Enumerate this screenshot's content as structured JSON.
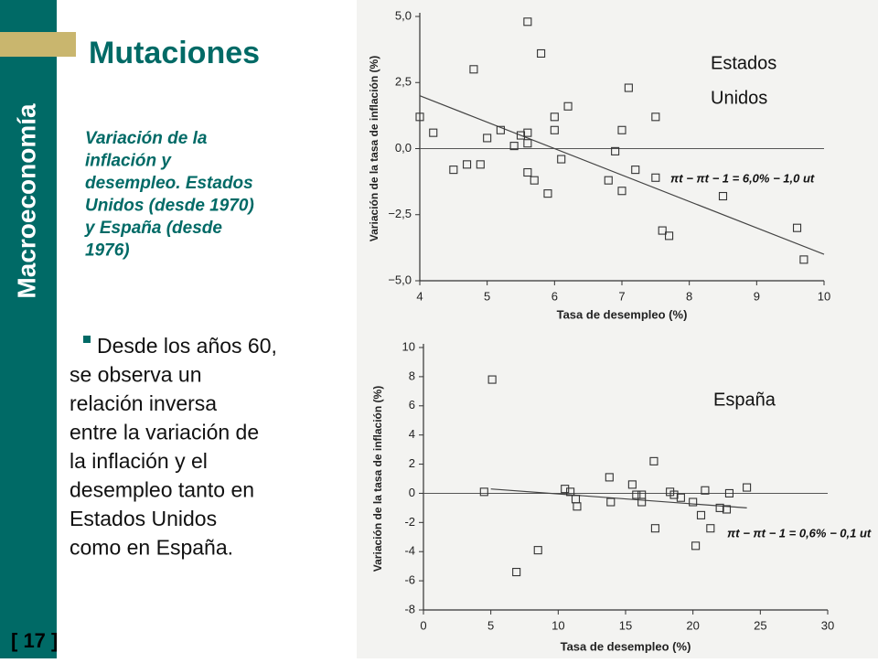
{
  "slide": {
    "sidebar": "Macroeconomía",
    "title": "Mutaciones",
    "subtitle_lines": [
      "Variación de la",
      "inflación y",
      "desempleo. Estados",
      "Unidos (desde 1970)",
      "y España (desde",
      "1976)"
    ],
    "bullet_lines": [
      "Desde los años 60,",
      "se observa un",
      "relación inversa",
      "entre la variación de",
      "la inflación y el",
      "desempleo tanto en",
      "Estados Unidos",
      "como en España."
    ],
    "page": "[ 17 ]"
  },
  "chart_data": [
    {
      "type": "scatter",
      "title_lines": [
        "Estados",
        "Unidos"
      ],
      "x_label": "Tasa de desempleo (%)",
      "y_label": "Variación de la tasa de inflación (%)",
      "annotation": "πt − πt − 1 = 6,0% − 1,0 ut",
      "color": "#333333",
      "x": [
        4.0,
        4.2,
        4.5,
        4.7,
        4.8,
        4.9,
        5.0,
        5.2,
        5.4,
        5.5,
        5.6,
        5.6,
        5.6,
        5.6,
        5.7,
        5.8,
        5.9,
        6.0,
        6.0,
        6.1,
        6.2,
        6.8,
        6.9,
        7.0,
        7.0,
        7.1,
        7.2,
        7.5,
        7.5,
        7.6,
        7.7,
        8.5,
        9.6,
        9.7
      ],
      "values": [
        1.2,
        0.6,
        -0.8,
        -0.6,
        3.0,
        -0.6,
        0.4,
        0.7,
        0.1,
        0.5,
        0.2,
        0.6,
        4.8,
        -0.9,
        -1.2,
        3.6,
        -1.7,
        0.7,
        1.2,
        -0.4,
        1.6,
        -1.2,
        -0.1,
        -1.6,
        0.7,
        2.3,
        -0.8,
        -1.1,
        1.2,
        -3.1,
        -3.3,
        -1.8,
        -3.0,
        -4.2
      ],
      "fit": {
        "x": [
          4,
          10
        ],
        "values": [
          2.0,
          -4.0
        ]
      },
      "reference_line": 0,
      "xlim": [
        4,
        10
      ],
      "xticks": [
        4,
        5,
        6,
        7,
        8,
        9,
        10
      ],
      "ylim": [
        -5,
        5
      ],
      "yticks": [
        {
          "value": 5,
          "label": "5,0"
        },
        {
          "value": 2.5,
          "label": "2,5"
        },
        {
          "value": 0,
          "label": "0,0"
        },
        {
          "value": -2.5,
          "label": "−2,5"
        },
        {
          "value": -5,
          "label": "−5,0"
        }
      ],
      "grid": false
    },
    {
      "type": "scatter",
      "title_lines": [
        "España"
      ],
      "x_label": "Tasa de desempleo (%)",
      "y_label": "Variación de la tasa de inflación (%)",
      "annotation": "πt − πt − 1 = 0,6% − 0,1 ut",
      "color": "#333333",
      "x": [
        5.1,
        4.5,
        6.9,
        8.5,
        10.5,
        10.9,
        11.3,
        11.4,
        13.8,
        13.9,
        15.5,
        15.8,
        16.2,
        16.2,
        17.1,
        17.2,
        18.3,
        18.6,
        19.1,
        20.0,
        20.2,
        20.6,
        20.9,
        21.3,
        22.0,
        22.5,
        22.7,
        24.0
      ],
      "values": [
        7.8,
        0.1,
        -5.4,
        -3.9,
        0.3,
        0.1,
        -0.4,
        -0.9,
        1.1,
        -0.6,
        0.6,
        -0.1,
        -0.6,
        -0.1,
        2.2,
        -2.4,
        0.1,
        -0.1,
        -0.3,
        -0.6,
        -3.6,
        -1.5,
        0.2,
        -2.4,
        -1.0,
        -1.1,
        0.0,
        0.4
      ],
      "fit": {
        "x": [
          5,
          24
        ],
        "values": [
          0.3,
          -1.0
        ]
      },
      "reference_line": 0,
      "xlim": [
        0,
        30
      ],
      "xticks": [
        0,
        5,
        10,
        15,
        20,
        25,
        30
      ],
      "ylim": [
        -8,
        10
      ],
      "yticks": [
        10,
        8,
        6,
        4,
        2,
        0,
        -2,
        -4,
        -6,
        -8
      ],
      "grid": false
    }
  ]
}
